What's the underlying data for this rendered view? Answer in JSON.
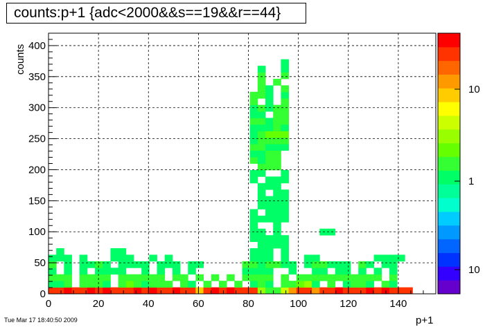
{
  "chart_data": {
    "type": "heatmap",
    "title": "counts:p+1 {adc<2000&&s==19&&r==44}",
    "xlabel": "p+1",
    "ylabel": "counts",
    "xlim": [
      0,
      155
    ],
    "ylim": [
      0,
      420
    ],
    "x_ticks": [
      "0",
      "20",
      "40",
      "60",
      "80",
      "100",
      "120",
      "140"
    ],
    "y_ticks": [
      "0",
      "50",
      "100",
      "150",
      "200",
      "250",
      "300",
      "350",
      "400"
    ],
    "grid": true,
    "colorbar_labels": [
      "10",
      "1",
      "10"
    ],
    "bin_width_x": 3.1,
    "bin_height_y": 10.5,
    "cells": [
      [
        0,
        0,
        4.6
      ],
      [
        3.1,
        0,
        4.8
      ],
      [
        6.2,
        0,
        5.0
      ],
      [
        9.3,
        0,
        4.6
      ],
      [
        12.4,
        0,
        4.8
      ],
      [
        15.5,
        0,
        5.0
      ],
      [
        18.6,
        0,
        4.7
      ],
      [
        21.7,
        0,
        4.9
      ],
      [
        24.8,
        0,
        4.8
      ],
      [
        27.9,
        0,
        4.6
      ],
      [
        31,
        0,
        4.8
      ],
      [
        34.1,
        0,
        5.0
      ],
      [
        37.2,
        0,
        4.7
      ],
      [
        40.3,
        0,
        4.9
      ],
      [
        43.4,
        0,
        4.8
      ],
      [
        46.5,
        0,
        4.6
      ],
      [
        49.6,
        0,
        4.9
      ],
      [
        52.7,
        0,
        4.7
      ],
      [
        55.8,
        0,
        4.8
      ],
      [
        58.9,
        0,
        4.0
      ],
      [
        62,
        0,
        4.8
      ],
      [
        65.1,
        0,
        5.0
      ],
      [
        68.2,
        0,
        4.7
      ],
      [
        71.3,
        0,
        4.9
      ],
      [
        74.4,
        0,
        4.8
      ],
      [
        77.5,
        0,
        4.6
      ],
      [
        80.6,
        0,
        4.8
      ],
      [
        83.7,
        0,
        3.0
      ],
      [
        86.8,
        0,
        2.5
      ],
      [
        89.9,
        0,
        2.6
      ],
      [
        93,
        0,
        3.2
      ],
      [
        96.1,
        0,
        4.3
      ],
      [
        99.2,
        0,
        4.8
      ],
      [
        102.3,
        0,
        4.7
      ],
      [
        105.4,
        0,
        4.2
      ],
      [
        108.5,
        0,
        4.8
      ],
      [
        111.6,
        0,
        4.6
      ],
      [
        114.7,
        0,
        4.9
      ],
      [
        117.8,
        0,
        4.8
      ],
      [
        120.9,
        0,
        4.6
      ],
      [
        124,
        0,
        4.8
      ],
      [
        127.1,
        0,
        5.0
      ],
      [
        130.2,
        0,
        4.7
      ],
      [
        133.3,
        0,
        4.9
      ],
      [
        136.4,
        0,
        4.8
      ],
      [
        139.5,
        0,
        4.6
      ],
      [
        142.6,
        0,
        4.8
      ],
      [
        0,
        10.5,
        2.3
      ],
      [
        3.1,
        10.5,
        2.3
      ],
      [
        6.2,
        10.5,
        2.5
      ],
      [
        12.4,
        10.5,
        2.4
      ],
      [
        15.5,
        10.5,
        2.5
      ],
      [
        18.6,
        10.5,
        2.6
      ],
      [
        21.7,
        10.5,
        2.3
      ],
      [
        27.9,
        10.5,
        2.6
      ],
      [
        31,
        10.5,
        2.7
      ],
      [
        34.1,
        10.5,
        2.5
      ],
      [
        37.2,
        10.5,
        2.3
      ],
      [
        40.3,
        10.5,
        2.6
      ],
      [
        43.4,
        10.5,
        2.5
      ],
      [
        46.5,
        10.5,
        2.4
      ],
      [
        52.7,
        10.5,
        2.5
      ],
      [
        55.8,
        10.5,
        2.3
      ],
      [
        62,
        10.5,
        2.4
      ],
      [
        68.2,
        10.5,
        2.6
      ],
      [
        74.4,
        10.5,
        2.5
      ],
      [
        80.6,
        10.5,
        2.3
      ],
      [
        83.7,
        10.5,
        2.6
      ],
      [
        86.8,
        10.5,
        2.2
      ],
      [
        93,
        10.5,
        2.6
      ],
      [
        96.1,
        10.5,
        2.4
      ],
      [
        99.2,
        10.5,
        2.7
      ],
      [
        102.3,
        10.5,
        3.1
      ],
      [
        105.4,
        10.5,
        2.2
      ],
      [
        111.6,
        10.5,
        2.5
      ],
      [
        117.8,
        10.5,
        2.3
      ],
      [
        120.9,
        10.5,
        2.5
      ],
      [
        124,
        10.5,
        2.6
      ],
      [
        127.1,
        10.5,
        2.3
      ],
      [
        133.3,
        10.5,
        2.4
      ],
      [
        136.4,
        10.5,
        2.3
      ],
      [
        0,
        21,
        2.6
      ],
      [
        3.1,
        21,
        2.4
      ],
      [
        6.2,
        21,
        2.6
      ],
      [
        12.4,
        21,
        2.6
      ],
      [
        15.5,
        21,
        2.6
      ],
      [
        18.6,
        21,
        2.6
      ],
      [
        21.7,
        21,
        2.5
      ],
      [
        27.9,
        21,
        2.6
      ],
      [
        31,
        21,
        2.6
      ],
      [
        34.1,
        21,
        2.6
      ],
      [
        37.2,
        21,
        2.6
      ],
      [
        40.3,
        21,
        2.6
      ],
      [
        43.4,
        21,
        2.6
      ],
      [
        49.6,
        21,
        2.6
      ],
      [
        52.7,
        21,
        2.6
      ],
      [
        58.9,
        21,
        2.6
      ],
      [
        65.1,
        21,
        2.6
      ],
      [
        71.3,
        21,
        2.6
      ],
      [
        77.5,
        21,
        2.6
      ],
      [
        80.6,
        21,
        2.6
      ],
      [
        83.7,
        21,
        2.6
      ],
      [
        86.8,
        21,
        2.6
      ],
      [
        93,
        21,
        2.6
      ],
      [
        99.2,
        21,
        2.6
      ],
      [
        102.3,
        21,
        2.6
      ],
      [
        105.4,
        21,
        2.6
      ],
      [
        108.5,
        21,
        2.6
      ],
      [
        111.6,
        21,
        2.6
      ],
      [
        114.7,
        21,
        2.6
      ],
      [
        117.8,
        21,
        2.6
      ],
      [
        120.9,
        21,
        2.6
      ],
      [
        124,
        21,
        2.6
      ],
      [
        127.1,
        21,
        2.6
      ],
      [
        130.2,
        21,
        2.6
      ],
      [
        136.4,
        21,
        2.6
      ],
      [
        0,
        31.5,
        2.3
      ],
      [
        6.2,
        31.5,
        2.3
      ],
      [
        12.4,
        31.5,
        2.3
      ],
      [
        18.6,
        31.5,
        2.3
      ],
      [
        21.7,
        31.5,
        2.3
      ],
      [
        24.8,
        31.5,
        2.3
      ],
      [
        27.9,
        31.5,
        2.3
      ],
      [
        37.2,
        31.5,
        2.3
      ],
      [
        43.4,
        31.5,
        2.3
      ],
      [
        49.6,
        31.5,
        2.3
      ],
      [
        55.8,
        31.5,
        2.3
      ],
      [
        77.5,
        31.5,
        2.3
      ],
      [
        80.6,
        31.5,
        2.3
      ],
      [
        83.7,
        31.5,
        2.3
      ],
      [
        86.8,
        31.5,
        2.3
      ],
      [
        96.1,
        31.5,
        2.3
      ],
      [
        105.4,
        31.5,
        2.3
      ],
      [
        108.5,
        31.5,
        2.3
      ],
      [
        114.7,
        31.5,
        2.3
      ],
      [
        117.8,
        31.5,
        2.3
      ],
      [
        124,
        31.5,
        2.3
      ],
      [
        130.2,
        31.5,
        2.3
      ],
      [
        136.4,
        31.5,
        2.3
      ],
      [
        0,
        42,
        2.5
      ],
      [
        6.2,
        42,
        2.3
      ],
      [
        12.4,
        42,
        2.3
      ],
      [
        15.5,
        42,
        2.3
      ],
      [
        18.6,
        42,
        2.4
      ],
      [
        21.7,
        42,
        2.3
      ],
      [
        27.9,
        42,
        2.3
      ],
      [
        31,
        42,
        2.3
      ],
      [
        34.1,
        42,
        2.3
      ],
      [
        37.2,
        42,
        2.3
      ],
      [
        43.4,
        42,
        2.3
      ],
      [
        46.5,
        42,
        2.3
      ],
      [
        49.6,
        42,
        2.3
      ],
      [
        55.8,
        42,
        2.3
      ],
      [
        58.9,
        42,
        2.3
      ],
      [
        77.5,
        42,
        2.5
      ],
      [
        80.6,
        42,
        2.5
      ],
      [
        83.7,
        42,
        2.3
      ],
      [
        86.8,
        42,
        2.5
      ],
      [
        89.9,
        42,
        2.5
      ],
      [
        93,
        42,
        2.3
      ],
      [
        96.1,
        42,
        2.3
      ],
      [
        102.3,
        42,
        2.3
      ],
      [
        105.4,
        42,
        2.6
      ],
      [
        108.5,
        42,
        2.6
      ],
      [
        111.6,
        42,
        2.3
      ],
      [
        114.7,
        42,
        2.3
      ],
      [
        117.8,
        42,
        2.3
      ],
      [
        124,
        42,
        2.5
      ],
      [
        127.1,
        42,
        2.3
      ],
      [
        133.3,
        42,
        2.3
      ],
      [
        136.4,
        42,
        2.3
      ],
      [
        0,
        52.5,
        2.3
      ],
      [
        3.1,
        52.5,
        2.3
      ],
      [
        6.2,
        52.5,
        2.3
      ],
      [
        12.4,
        52.5,
        2.3
      ],
      [
        24.8,
        52.5,
        2.3
      ],
      [
        27.9,
        52.5,
        2.3
      ],
      [
        31,
        52.5,
        2.3
      ],
      [
        40.3,
        52.5,
        2.3
      ],
      [
        46.5,
        52.5,
        2.3
      ],
      [
        80.6,
        52.5,
        2.3
      ],
      [
        83.7,
        52.5,
        2.3
      ],
      [
        86.8,
        52.5,
        2.3
      ],
      [
        93,
        52.5,
        2.3
      ],
      [
        102.3,
        52.5,
        2.3
      ],
      [
        105.4,
        52.5,
        2.3
      ],
      [
        130.2,
        52.5,
        2.3
      ],
      [
        133.3,
        52.5,
        2.3
      ],
      [
        136.4,
        52.5,
        2.3
      ],
      [
        139.5,
        52.5,
        2.3
      ],
      [
        3.1,
        63,
        2.3
      ],
      [
        24.8,
        63,
        2.3
      ],
      [
        27.9,
        63,
        2.3
      ],
      [
        80.6,
        63,
        2.3
      ],
      [
        83.7,
        63,
        2.3
      ],
      [
        86.8,
        63,
        2.3
      ],
      [
        93,
        63,
        2.3
      ],
      [
        83.7,
        73.5,
        2.3
      ],
      [
        86.8,
        73.5,
        2.3
      ],
      [
        89.9,
        73.5,
        2.3
      ],
      [
        93,
        73.5,
        2.3
      ],
      [
        80.6,
        84,
        2.3
      ],
      [
        83.7,
        84,
        2.3
      ],
      [
        86.8,
        84,
        2.3
      ],
      [
        89.9,
        84,
        2.3
      ],
      [
        93,
        84,
        2.3
      ],
      [
        80.6,
        94.5,
        2.3
      ],
      [
        83.7,
        94.5,
        2.3
      ],
      [
        89.9,
        94.5,
        2.3
      ],
      [
        108.5,
        94.5,
        2.3
      ],
      [
        111.6,
        94.5,
        2.3
      ],
      [
        80.6,
        105,
        2.3
      ],
      [
        89.9,
        105,
        2.3
      ],
      [
        80.6,
        115.5,
        2.3
      ],
      [
        83.7,
        115.5,
        2.3
      ],
      [
        86.8,
        115.5,
        2.3
      ],
      [
        89.9,
        115.5,
        2.3
      ],
      [
        93,
        115.5,
        2.3
      ],
      [
        80.6,
        126,
        2.3
      ],
      [
        86.8,
        126,
        2.3
      ],
      [
        89.9,
        126,
        2.3
      ],
      [
        93,
        126,
        2.3
      ],
      [
        83.7,
        136.5,
        2.3
      ],
      [
        86.8,
        136.5,
        2.3
      ],
      [
        89.9,
        136.5,
        2.3
      ],
      [
        93,
        136.5,
        2.3
      ],
      [
        83.7,
        147,
        2.3
      ],
      [
        86.8,
        147,
        2.3
      ],
      [
        89.9,
        147,
        2.3
      ],
      [
        93,
        147,
        2.3
      ],
      [
        83.7,
        157.5,
        2.3
      ],
      [
        89.9,
        157.5,
        2.3
      ],
      [
        93,
        157.5,
        2.3
      ],
      [
        83.7,
        168,
        2.3
      ],
      [
        86.8,
        168,
        2.3
      ],
      [
        89.9,
        168,
        2.3
      ],
      [
        80.6,
        178.5,
        2.3
      ],
      [
        86.8,
        178.5,
        2.3
      ],
      [
        89.9,
        178.5,
        2.3
      ],
      [
        93,
        178.5,
        2.3
      ],
      [
        80.6,
        189,
        2.3
      ],
      [
        83.7,
        189,
        2.3
      ],
      [
        93,
        189,
        2.3
      ],
      [
        83.7,
        199.5,
        2.5
      ],
      [
        86.8,
        199.5,
        2.6
      ],
      [
        89.9,
        199.5,
        2.5
      ],
      [
        80.6,
        210,
        2.6
      ],
      [
        83.7,
        210,
        2.3
      ],
      [
        86.8,
        210,
        2.6
      ],
      [
        89.9,
        210,
        2.6
      ],
      [
        80.6,
        220.5,
        2.3
      ],
      [
        83.7,
        220.5,
        2.3
      ],
      [
        86.8,
        220.5,
        2.6
      ],
      [
        89.9,
        220.5,
        2.5
      ],
      [
        80.6,
        231,
        2.6
      ],
      [
        83.7,
        231,
        2.6
      ],
      [
        86.8,
        231,
        2.3
      ],
      [
        89.9,
        231,
        2.3
      ],
      [
        93,
        231,
        2.3
      ],
      [
        80.6,
        241.5,
        2.3
      ],
      [
        83.7,
        241.5,
        2.6
      ],
      [
        86.8,
        241.5,
        2.6
      ],
      [
        89.9,
        241.5,
        2.6
      ],
      [
        93,
        241.5,
        2.6
      ],
      [
        80.6,
        252,
        2.3
      ],
      [
        83.7,
        252,
        2.6
      ],
      [
        86.8,
        252,
        2.8
      ],
      [
        89.9,
        252,
        2.8
      ],
      [
        93,
        252,
        2.7
      ],
      [
        80.6,
        262.5,
        2.3
      ],
      [
        83.7,
        262.5,
        2.3
      ],
      [
        86.8,
        262.5,
        2.3
      ],
      [
        89.9,
        262.5,
        2.5
      ],
      [
        93,
        262.5,
        2.3
      ],
      [
        80.6,
        273,
        2.5
      ],
      [
        83.7,
        273,
        2.5
      ],
      [
        86.8,
        273,
        2.3
      ],
      [
        89.9,
        273,
        2.6
      ],
      [
        93,
        273,
        2.6
      ],
      [
        80.6,
        283.5,
        2.3
      ],
      [
        83.7,
        283.5,
        2.3
      ],
      [
        89.9,
        283.5,
        2.5
      ],
      [
        93,
        283.5,
        2.5
      ],
      [
        80.6,
        294,
        2.3
      ],
      [
        83.7,
        294,
        2.6
      ],
      [
        86.8,
        294,
        2.3
      ],
      [
        89.9,
        294,
        2.5
      ],
      [
        93,
        294,
        2.5
      ],
      [
        80.6,
        304.5,
        2.6
      ],
      [
        86.8,
        304.5,
        2.3
      ],
      [
        93,
        304.5,
        2.6
      ],
      [
        80.6,
        315,
        2.6
      ],
      [
        83.7,
        315,
        2.6
      ],
      [
        86.8,
        315,
        2.3
      ],
      [
        93,
        315,
        2.3
      ],
      [
        83.7,
        325.5,
        2.6
      ],
      [
        86.8,
        325.5,
        2.3
      ],
      [
        93,
        325.5,
        2.6
      ],
      [
        83.7,
        336,
        2.6
      ],
      [
        89.9,
        336,
        2.6
      ],
      [
        83.7,
        346.5,
        2.6
      ],
      [
        93,
        346.5,
        2.6
      ],
      [
        83.7,
        357,
        2.3
      ],
      [
        93,
        357,
        2.3
      ],
      [
        93,
        367.5,
        2.3
      ]
    ]
  },
  "footer": {
    "timestamp": "Tue Mar 17 18:40:50 2009"
  }
}
